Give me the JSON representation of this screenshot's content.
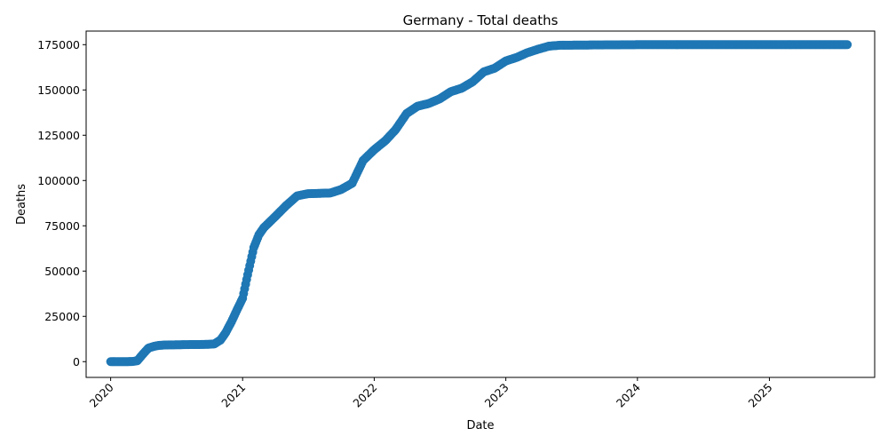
{
  "chart_data": {
    "type": "scatter",
    "title": "Germany - Total deaths",
    "xlabel": "Date",
    "ylabel": "Deaths",
    "x_ticks": [
      "2020",
      "2021",
      "2022",
      "2023",
      "2024",
      "2025"
    ],
    "y_ticks": [
      0,
      25000,
      50000,
      75000,
      100000,
      125000,
      150000,
      175000
    ],
    "ylim": [
      -8700,
      182500
    ],
    "xlim": [
      "2019-10-25",
      "2025-10-20"
    ],
    "grid": false,
    "marker_color": "#1f77b4",
    "series": [
      {
        "x": [
          "2020-01-01",
          "2020-02-01",
          "2020-03-01",
          "2020-03-15",
          "2020-04-01",
          "2020-04-15",
          "2020-05-01",
          "2020-05-15",
          "2020-06-01",
          "2020-07-01",
          "2020-08-01",
          "2020-09-01",
          "2020-10-01",
          "2020-10-15",
          "2020-11-01",
          "2020-11-15",
          "2020-12-01",
          "2020-12-15",
          "2021-01-01",
          "2021-01-15",
          "2021-02-01",
          "2021-02-15",
          "2021-03-01",
          "2021-04-01",
          "2021-05-01",
          "2021-06-01",
          "2021-07-01",
          "2021-08-01",
          "2021-09-01",
          "2021-10-01",
          "2021-11-01",
          "2021-12-01",
          "2022-01-01",
          "2022-02-01",
          "2022-03-01",
          "2022-04-01",
          "2022-05-01",
          "2022-06-01",
          "2022-07-01",
          "2022-08-01",
          "2022-09-01",
          "2022-10-01",
          "2022-11-01",
          "2022-12-01",
          "2023-01-01",
          "2023-02-01",
          "2023-03-01",
          "2023-04-01",
          "2023-05-01",
          "2023-06-01",
          "2023-12-31",
          "2024-12-31",
          "2025-08-05"
        ],
        "y": [
          0,
          0,
          50,
          500,
          4500,
          7500,
          8500,
          9000,
          9200,
          9300,
          9400,
          9450,
          9600,
          9800,
          12000,
          16000,
          22000,
          28000,
          35000,
          48000,
          63000,
          70000,
          74000,
          80000,
          86000,
          91500,
          92700,
          92900,
          93100,
          95000,
          98500,
          111000,
          117000,
          122000,
          128000,
          137000,
          141000,
          142500,
          145000,
          149000,
          151000,
          154500,
          160000,
          162000,
          166000,
          168000,
          170500,
          172500,
          174200,
          174700,
          175000,
          175000,
          175000
        ]
      }
    ]
  }
}
